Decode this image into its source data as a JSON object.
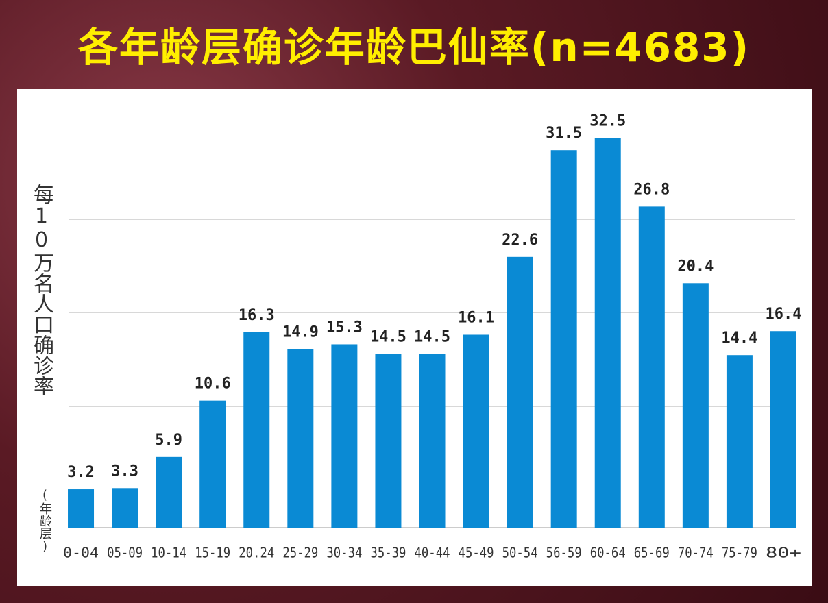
{
  "chart_data": {
    "type": "bar",
    "title": "各年龄层确诊年龄巴仙率(n=4683)",
    "y_label": "每10万名人口确诊率",
    "x_label": "(年龄层)",
    "categories": [
      "0-04",
      "05-09",
      "10-14",
      "15-19",
      "20.24",
      "25-29",
      "30-34",
      "35-39",
      "40-44",
      "45-49",
      "50-54",
      "56-59",
      "60-64",
      "65-69",
      "70-74",
      "75-79",
      "80+"
    ],
    "values": [
      3.2,
      3.3,
      5.9,
      10.6,
      16.3,
      14.9,
      15.3,
      14.5,
      14.5,
      16.1,
      22.6,
      31.5,
      32.5,
      26.8,
      20.4,
      14.4,
      16.4
    ],
    "color": "#0a8ad4",
    "ylim": [
      0,
      35
    ]
  }
}
